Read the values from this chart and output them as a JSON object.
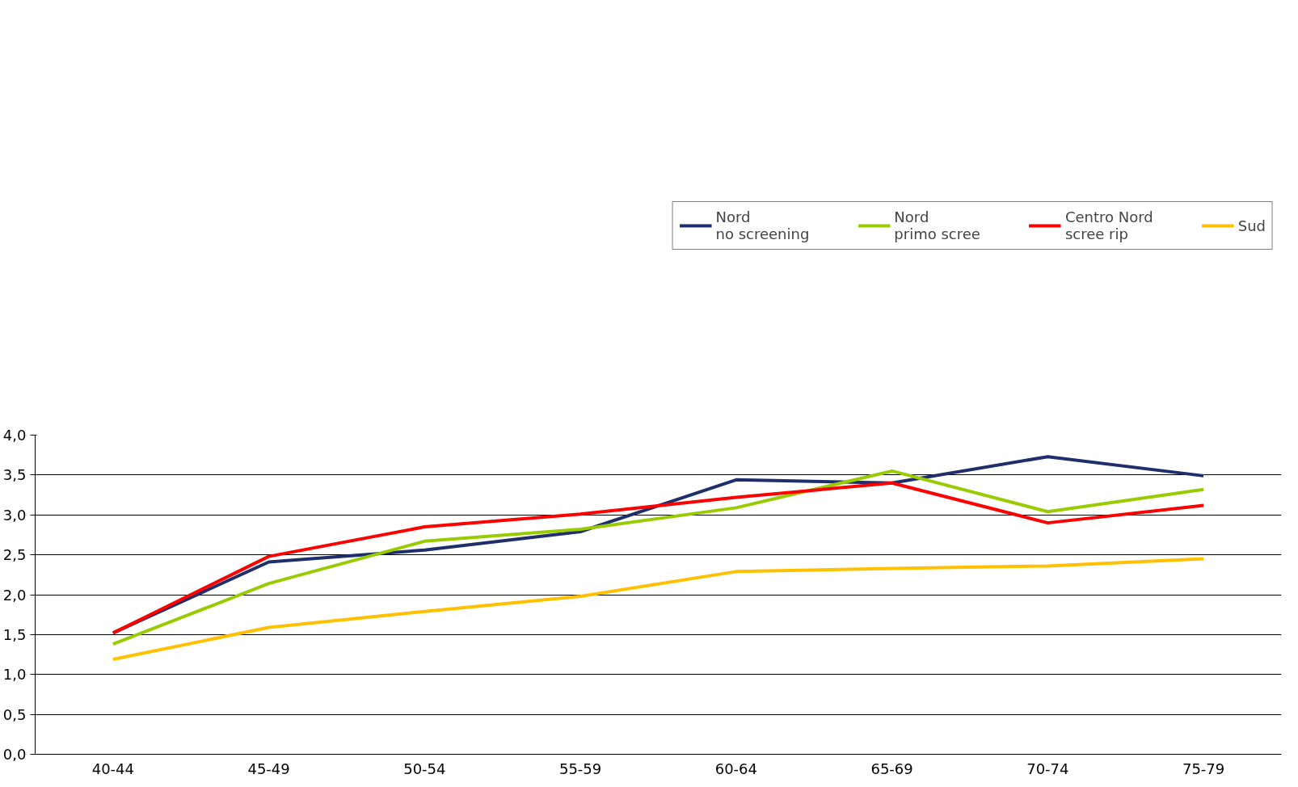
{
  "chart_data": {
    "type": "line",
    "categories": [
      "40-44",
      "45-49",
      "50-54",
      "55-59",
      "60-64",
      "65-69",
      "70-74",
      "75-79"
    ],
    "series": [
      {
        "name": "Nord\nno screening",
        "color": "#1f2f6b",
        "values": [
          1.52,
          2.41,
          2.56,
          2.79,
          3.44,
          3.4,
          3.73,
          3.49
        ]
      },
      {
        "name": "Nord\nprimo scree",
        "color": "#99cc00",
        "values": [
          1.38,
          2.14,
          2.67,
          2.82,
          3.09,
          3.55,
          3.04,
          3.32
        ]
      },
      {
        "name": "Centro Nord\nscree rip",
        "color": "#ff0000",
        "values": [
          1.52,
          2.48,
          2.85,
          3.01,
          3.22,
          3.4,
          2.9,
          3.12
        ]
      },
      {
        "name": "Sud",
        "color": "#ffc000",
        "values": [
          1.19,
          1.59,
          1.79,
          1.98,
          2.29,
          2.33,
          2.36,
          2.45
        ]
      }
    ],
    "ylim": [
      0,
      4
    ],
    "yticks": [
      {
        "value": 0,
        "label": "0,0"
      },
      {
        "value": 0.5,
        "label": "0,5"
      },
      {
        "value": 1,
        "label": "1,0"
      },
      {
        "value": 1.5,
        "label": "1,5"
      },
      {
        "value": 2,
        "label": "2,0"
      },
      {
        "value": 2.5,
        "label": "2,5"
      },
      {
        "value": 3,
        "label": "3,0"
      },
      {
        "value": 3.5,
        "label": "3,5"
      },
      {
        "value": 4,
        "label": "4,0"
      }
    ],
    "grid": "y",
    "legend": "top",
    "line_style": "solid"
  }
}
